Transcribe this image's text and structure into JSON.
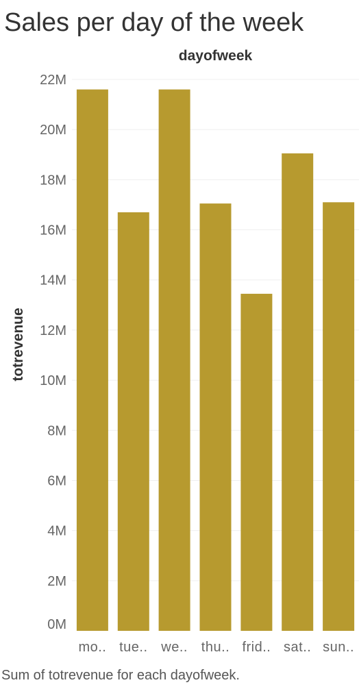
{
  "chart_data": {
    "type": "bar",
    "title": "Sales per day of the week",
    "xlabel": "dayofweek",
    "ylabel": "totrevenue",
    "caption": "Sum of totrevenue for each dayofweek.",
    "categories": [
      "mo..",
      "tue..",
      "we..",
      "thu..",
      "frid..",
      "sat..",
      "sun.."
    ],
    "values": [
      21600000,
      16700000,
      21600000,
      17050000,
      13450000,
      19050000,
      17100000
    ],
    "ylim": [
      0,
      22000000
    ],
    "yticks": [
      0,
      2000000,
      4000000,
      6000000,
      8000000,
      10000000,
      12000000,
      14000000,
      16000000,
      18000000,
      20000000,
      22000000
    ],
    "ytick_labels": [
      "0M",
      "2M",
      "4M",
      "6M",
      "8M",
      "10M",
      "12M",
      "14M",
      "16M",
      "18M",
      "20M",
      "22M"
    ],
    "grid": true,
    "bar_color": "#b79a2f",
    "grid_color": "#efefef"
  }
}
